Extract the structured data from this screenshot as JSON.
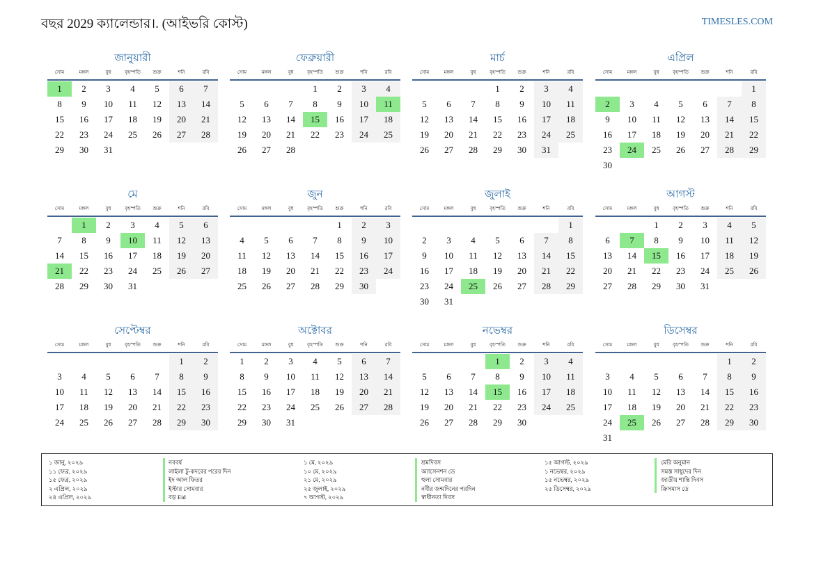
{
  "header": {
    "title": "বছর 2029 ক্যালেন্ডার।. (আইভরি কোস্ট)",
    "site": "TIMESLES.COM"
  },
  "colors": {
    "accent": "#2f6ea7",
    "holiday": "#8ee88e",
    "weekend": "#f2f2f2",
    "rule": "#40628f"
  },
  "weekdays": [
    "সোম",
    "মঙ্গল",
    "বুধ",
    "বৃহস্পতি",
    "শুক্র",
    "শনি",
    "রবি"
  ],
  "months": [
    {
      "name": "জানুয়ারী",
      "offset": 0,
      "days": 31,
      "holidays": [
        1
      ]
    },
    {
      "name": "ফেব্রুয়ারী",
      "offset": 3,
      "days": 28,
      "holidays": [
        11,
        15
      ]
    },
    {
      "name": "মার্চ",
      "offset": 3,
      "days": 31,
      "holidays": []
    },
    {
      "name": "এপ্রিল",
      "offset": 6,
      "days": 30,
      "holidays": [
        2,
        24
      ]
    },
    {
      "name": "মে",
      "offset": 1,
      "days": 31,
      "holidays": [
        1,
        10,
        21
      ]
    },
    {
      "name": "জুন",
      "offset": 4,
      "days": 30,
      "holidays": []
    },
    {
      "name": "জুলাই",
      "offset": 6,
      "days": 31,
      "holidays": [
        25
      ]
    },
    {
      "name": "আগস্ট",
      "offset": 2,
      "days": 31,
      "holidays": [
        7,
        15
      ]
    },
    {
      "name": "সেপ্টেম্বর",
      "offset": 5,
      "days": 30,
      "holidays": []
    },
    {
      "name": "অক্টোবর",
      "offset": 0,
      "days": 31,
      "holidays": []
    },
    {
      "name": "নভেম্বর",
      "offset": 3,
      "days": 30,
      "holidays": [
        1,
        15
      ]
    },
    {
      "name": "ডিসেম্বর",
      "offset": 5,
      "days": 31,
      "holidays": [
        25
      ]
    }
  ],
  "holidays": [
    {
      "date": "১ জানু, ২০২৯",
      "name": "নববর্ষ"
    },
    {
      "date": "১১ ফেব্র, ২০২৯",
      "name": "লাইলা টু-কদরের পরের দিন"
    },
    {
      "date": "১৫ ফেব্র, ২০২৯",
      "name": "ইদ আল ফিতর"
    },
    {
      "date": "২ এপ্রিল, ২০২৯",
      "name": "ইস্টার সোমবার"
    },
    {
      "date": "২৪ এপ্রিল, ২০২৯",
      "name": "বড় Eid"
    },
    {
      "date": "১ মে, ২০২৯",
      "name": "শ্রমদিবস"
    },
    {
      "date": "১০ মে, ২০২৯",
      "name": "অ্যাসেনশন ডে"
    },
    {
      "date": "২১ মে, ২০২৯",
      "name": "হুলা সোমবার"
    },
    {
      "date": "২৫ জুলাই, ২০২৯",
      "name": "নবীর জন্মদিনের পরদিন"
    },
    {
      "date": "৭ আগস্ট, ২০২৯",
      "name": "স্বাধীনতা দিবস"
    },
    {
      "date": "১৫ আগস্ট, ২০২৯",
      "name": "মেরি অনুমান"
    },
    {
      "date": "১ নভেম্বর, ২০২৯",
      "name": "সমস্ত সাধুদের দিন"
    },
    {
      "date": "১৫ নভেম্বর, ২০২৯",
      "name": "জাতীয় শান্তি দিবস"
    },
    {
      "date": "২৫ ডিসেম্বর, ২০২৯",
      "name": "ক্রিসমাস ডে"
    }
  ]
}
